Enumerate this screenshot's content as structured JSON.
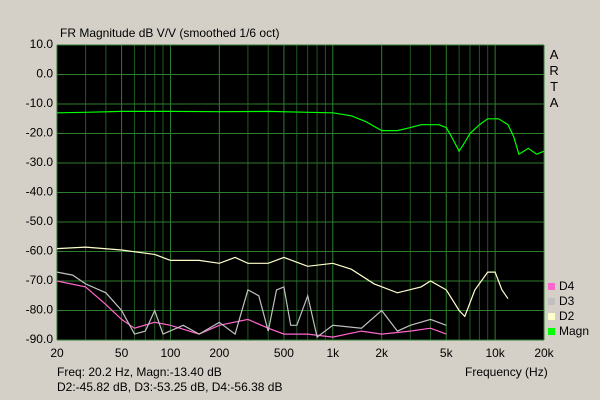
{
  "chart_data": {
    "type": "line",
    "title": "FR Magnitude dB V/V (smoothed 1/6 oct)",
    "side_label": "ARTA",
    "xlabel": "Frequency (Hz)",
    "status": [
      "Freq: 20.2 Hz, Magn:-13.40 dB",
      "D2:-45.82 dB, D3:-53.25 dB, D4:-56.38 dB"
    ],
    "xscale": "log",
    "xlim": [
      20,
      20000
    ],
    "ylim": [
      -90,
      10
    ],
    "xticks": [
      20,
      50,
      100,
      200,
      500,
      {
        "value": 1000,
        "label": "1k"
      },
      {
        "value": 2000,
        "label": "2k"
      },
      {
        "value": 5000,
        "label": "5k"
      },
      {
        "value": 10000,
        "label": "10k"
      },
      {
        "value": 20000,
        "label": "20k"
      }
    ],
    "xminorticks": [
      30,
      40,
      60,
      70,
      80,
      90,
      300,
      400,
      600,
      700,
      800,
      900,
      3000,
      4000,
      6000,
      7000,
      8000,
      9000
    ],
    "yticks": [
      {
        "value": 10,
        "label": "10.0"
      },
      {
        "value": 0,
        "label": "0.0"
      },
      {
        "value": -10,
        "label": "-10.0"
      },
      {
        "value": -20,
        "label": "-20.0"
      },
      {
        "value": -30,
        "label": "-30.0"
      },
      {
        "value": -40,
        "label": "-40.0"
      },
      {
        "value": -50,
        "label": "-50.0"
      },
      {
        "value": -60,
        "label": "-60.0"
      },
      {
        "value": -70,
        "label": "-70.0"
      },
      {
        "value": -80,
        "label": "-80.0"
      },
      {
        "value": -90,
        "label": "-90.0"
      }
    ],
    "grid": true,
    "legend": "bottom-right",
    "series": [
      {
        "name": "Magn",
        "color": "#00ff00",
        "x": [
          20,
          30,
          50,
          100,
          200,
          400,
          700,
          1000,
          1300,
          1600,
          2000,
          2500,
          3000,
          3500,
          4500,
          5000,
          5500,
          6000,
          6500,
          7000,
          8000,
          9000,
          10500,
          12000,
          13000,
          14000,
          15000,
          16000,
          18000,
          20000
        ],
        "values": [
          -13,
          -12.8,
          -12.5,
          -12.5,
          -12.6,
          -12.5,
          -12.8,
          -13,
          -14,
          -16,
          -19,
          -19,
          -18,
          -17,
          -17,
          -18,
          -22,
          -26,
          -23,
          -20,
          -17,
          -15,
          -15,
          -17,
          -21,
          -27,
          -26,
          -25,
          -27,
          -26
        ]
      },
      {
        "name": "D2",
        "color": "#ffffcc",
        "x": [
          20,
          30,
          50,
          80,
          100,
          150,
          200,
          250,
          300,
          400,
          500,
          700,
          1000,
          1300,
          1800,
          2500,
          3500,
          4000,
          5000,
          6000,
          6500,
          7500,
          9000,
          10000,
          11000,
          12000
        ],
        "values": [
          -59,
          -58.5,
          -59.5,
          -61,
          -63,
          -63,
          -64,
          -62,
          -64,
          -64,
          -62,
          -65,
          -64,
          -66,
          -71,
          -74,
          -72,
          -70,
          -73,
          -80,
          -82,
          -73,
          -67,
          -67,
          -73,
          -76
        ]
      },
      {
        "name": "D3",
        "color": "#c0c0c0",
        "x": [
          20,
          25,
          30,
          40,
          50,
          60,
          70,
          80,
          90,
          120,
          150,
          200,
          250,
          300,
          350,
          400,
          450,
          500,
          550,
          600,
          700,
          800,
          1000,
          1500,
          2000,
          2500,
          3000,
          4000,
          5000
        ],
        "values": [
          -67,
          -68,
          -71,
          -74,
          -80,
          -88,
          -87,
          -80,
          -88,
          -85,
          -88,
          -84,
          -88,
          -73,
          -75,
          -87,
          -73,
          -72,
          -85,
          -85,
          -75,
          -89,
          -85,
          -86,
          -80,
          -87,
          -85,
          -83,
          -85
        ]
      },
      {
        "name": "D4",
        "color": "#ff66cc",
        "x": [
          20,
          30,
          40,
          50,
          60,
          80,
          100,
          150,
          200,
          300,
          400,
          500,
          700,
          1000,
          1500,
          2000,
          3000,
          4000,
          5000
        ],
        "values": [
          -70,
          -72,
          -78,
          -83,
          -86,
          -84,
          -85,
          -88,
          -85,
          -83,
          -86,
          -88,
          -88,
          -89,
          -87,
          -88,
          -87,
          -86,
          -88
        ]
      }
    ]
  }
}
